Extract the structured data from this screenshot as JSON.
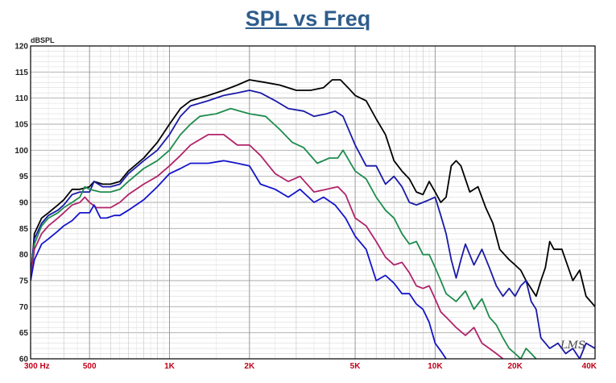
{
  "chart_data": {
    "type": "line",
    "title": "SPL vs Freq",
    "ylabel": "dBSPL",
    "xlabel": "",
    "xscale": "log",
    "xlim": [
      300,
      40000
    ],
    "ylim": [
      60,
      120
    ],
    "yticks": [
      60,
      65,
      70,
      75,
      80,
      85,
      90,
      95,
      100,
      105,
      110,
      115,
      120
    ],
    "xticks": [
      {
        "value": 300,
        "label": "300  Hz"
      },
      {
        "value": 500,
        "label": "500"
      },
      {
        "value": 1000,
        "label": "1K"
      },
      {
        "value": 2000,
        "label": "2K"
      },
      {
        "value": 5000,
        "label": "5K"
      },
      {
        "value": 10000,
        "label": "10K"
      },
      {
        "value": 20000,
        "label": "20K"
      },
      {
        "value": 40000,
        "label": "40K"
      }
    ],
    "grid": true,
    "watermark": "LMS",
    "series": [
      {
        "color": "#000000",
        "points": [
          [
            300,
            75
          ],
          [
            310,
            84
          ],
          [
            330,
            87
          ],
          [
            350,
            88
          ],
          [
            380,
            89.5
          ],
          [
            400,
            90.5
          ],
          [
            430,
            92.5
          ],
          [
            460,
            92.5
          ],
          [
            500,
            93
          ],
          [
            520,
            94
          ],
          [
            560,
            93.5
          ],
          [
            600,
            93.5
          ],
          [
            650,
            94
          ],
          [
            700,
            96
          ],
          [
            800,
            98.5
          ],
          [
            900,
            101.5
          ],
          [
            1000,
            105
          ],
          [
            1100,
            108
          ],
          [
            1200,
            109.5
          ],
          [
            1400,
            110.5
          ],
          [
            1600,
            111.5
          ],
          [
            1800,
            112.5
          ],
          [
            2000,
            113.5
          ],
          [
            2300,
            113
          ],
          [
            2600,
            112.5
          ],
          [
            3000,
            111.5
          ],
          [
            3400,
            111.5
          ],
          [
            3800,
            112
          ],
          [
            4100,
            113.5
          ],
          [
            4400,
            113.5
          ],
          [
            4700,
            112
          ],
          [
            5000,
            110.5
          ],
          [
            5500,
            109.5
          ],
          [
            6000,
            106
          ],
          [
            6500,
            103
          ],
          [
            7000,
            98
          ],
          [
            7500,
            96
          ],
          [
            8000,
            94.5
          ],
          [
            8500,
            92
          ],
          [
            9000,
            91.5
          ],
          [
            9500,
            94
          ],
          [
            10000,
            92
          ],
          [
            10500,
            90
          ],
          [
            11000,
            91
          ],
          [
            11500,
            97
          ],
          [
            12000,
            98
          ],
          [
            12500,
            97
          ],
          [
            13500,
            92
          ],
          [
            14500,
            93
          ],
          [
            15500,
            89
          ],
          [
            16500,
            86
          ],
          [
            17500,
            81
          ],
          [
            19000,
            79
          ],
          [
            20000,
            78
          ],
          [
            21000,
            77
          ],
          [
            22000,
            75
          ],
          [
            24000,
            72
          ],
          [
            25000,
            75
          ],
          [
            26000,
            77.5
          ],
          [
            27000,
            82.5
          ],
          [
            28000,
            81
          ],
          [
            30000,
            81
          ],
          [
            33000,
            75
          ],
          [
            35000,
            77
          ],
          [
            37000,
            72
          ],
          [
            40000,
            70
          ]
        ]
      },
      {
        "color": "#1a1aa8",
        "points": [
          [
            300,
            76
          ],
          [
            310,
            83
          ],
          [
            330,
            86
          ],
          [
            350,
            87.5
          ],
          [
            380,
            88.5
          ],
          [
            400,
            89.5
          ],
          [
            430,
            91.5
          ],
          [
            460,
            92
          ],
          [
            500,
            92
          ],
          [
            520,
            94
          ],
          [
            560,
            93
          ],
          [
            600,
            93
          ],
          [
            650,
            93.5
          ],
          [
            700,
            95.5
          ],
          [
            800,
            98
          ],
          [
            900,
            100
          ],
          [
            1000,
            103
          ],
          [
            1100,
            106.5
          ],
          [
            1200,
            108.5
          ],
          [
            1400,
            109.5
          ],
          [
            1600,
            110.5
          ],
          [
            1800,
            111
          ],
          [
            2000,
            111.5
          ],
          [
            2200,
            111
          ],
          [
            2500,
            109.5
          ],
          [
            2800,
            108
          ],
          [
            3200,
            107.5
          ],
          [
            3500,
            106.5
          ],
          [
            3900,
            107
          ],
          [
            4200,
            107.5
          ],
          [
            4500,
            106.5
          ],
          [
            5000,
            101
          ],
          [
            5500,
            97
          ],
          [
            6000,
            97
          ],
          [
            6500,
            93.5
          ],
          [
            7000,
            95
          ],
          [
            7500,
            93
          ],
          [
            8000,
            90
          ],
          [
            8500,
            89.5
          ],
          [
            9000,
            90
          ],
          [
            9500,
            90.5
          ],
          [
            10000,
            91
          ],
          [
            10500,
            87.5
          ],
          [
            11000,
            84
          ],
          [
            11500,
            79
          ],
          [
            12000,
            75.5
          ],
          [
            12500,
            79
          ],
          [
            13000,
            82
          ],
          [
            14000,
            78
          ],
          [
            15000,
            81
          ],
          [
            16000,
            77.5
          ],
          [
            17000,
            74
          ],
          [
            18000,
            72
          ],
          [
            19000,
            73.5
          ],
          [
            20000,
            72
          ],
          [
            21000,
            74
          ],
          [
            22000,
            75
          ],
          [
            23000,
            71
          ],
          [
            24000,
            69.5
          ],
          [
            25000,
            64
          ],
          [
            27000,
            62
          ],
          [
            29000,
            63
          ],
          [
            31000,
            61
          ],
          [
            33000,
            62
          ],
          [
            35000,
            60
          ],
          [
            37000,
            63
          ],
          [
            40000,
            62
          ]
        ]
      },
      {
        "color": "#1e8c4e",
        "points": [
          [
            300,
            75
          ],
          [
            310,
            82
          ],
          [
            330,
            85.5
          ],
          [
            350,
            87
          ],
          [
            380,
            88
          ],
          [
            400,
            89
          ],
          [
            430,
            90
          ],
          [
            460,
            91
          ],
          [
            480,
            93
          ],
          [
            500,
            92.5
          ],
          [
            550,
            92
          ],
          [
            600,
            92
          ],
          [
            650,
            92.5
          ],
          [
            700,
            94
          ],
          [
            800,
            96.5
          ],
          [
            900,
            98
          ],
          [
            1000,
            100
          ],
          [
            1100,
            103
          ],
          [
            1200,
            105
          ],
          [
            1300,
            106.5
          ],
          [
            1500,
            107
          ],
          [
            1700,
            108
          ],
          [
            2000,
            107
          ],
          [
            2300,
            106.5
          ],
          [
            2600,
            104
          ],
          [
            2900,
            101.5
          ],
          [
            3200,
            100.5
          ],
          [
            3600,
            97.5
          ],
          [
            4000,
            98.5
          ],
          [
            4300,
            98.5
          ],
          [
            4500,
            100
          ],
          [
            5000,
            96
          ],
          [
            5500,
            94.5
          ],
          [
            6000,
            91
          ],
          [
            6500,
            88.5
          ],
          [
            7000,
            87
          ],
          [
            7500,
            84
          ],
          [
            8000,
            82
          ],
          [
            8500,
            82.5
          ],
          [
            9000,
            80
          ],
          [
            9500,
            80
          ],
          [
            10000,
            77.5
          ],
          [
            10500,
            75
          ],
          [
            11000,
            72.5
          ],
          [
            12000,
            71
          ],
          [
            13000,
            73
          ],
          [
            14000,
            69.5
          ],
          [
            15000,
            71.5
          ],
          [
            16000,
            68
          ],
          [
            17000,
            66.5
          ],
          [
            18000,
            64
          ],
          [
            19000,
            62
          ],
          [
            20000,
            61
          ],
          [
            21000,
            60
          ],
          [
            22000,
            62
          ],
          [
            23000,
            61
          ],
          [
            24000,
            60
          ]
        ]
      },
      {
        "color": "#b0246a",
        "points": [
          [
            300,
            75
          ],
          [
            310,
            81
          ],
          [
            330,
            84
          ],
          [
            350,
            85.5
          ],
          [
            380,
            87
          ],
          [
            400,
            88
          ],
          [
            430,
            89.5
          ],
          [
            460,
            90
          ],
          [
            480,
            91
          ],
          [
            500,
            90
          ],
          [
            530,
            89
          ],
          [
            560,
            89
          ],
          [
            600,
            89
          ],
          [
            650,
            90
          ],
          [
            700,
            91.5
          ],
          [
            800,
            93.5
          ],
          [
            900,
            95
          ],
          [
            1000,
            97
          ],
          [
            1100,
            99
          ],
          [
            1200,
            101
          ],
          [
            1400,
            103
          ],
          [
            1600,
            103
          ],
          [
            1800,
            101
          ],
          [
            2000,
            101
          ],
          [
            2200,
            99
          ],
          [
            2500,
            95.5
          ],
          [
            2800,
            94
          ],
          [
            3100,
            95
          ],
          [
            3500,
            92
          ],
          [
            3900,
            92.5
          ],
          [
            4300,
            93
          ],
          [
            4600,
            91.5
          ],
          [
            5000,
            87
          ],
          [
            5500,
            85.5
          ],
          [
            6000,
            82.5
          ],
          [
            6500,
            79.5
          ],
          [
            7000,
            78
          ],
          [
            7500,
            78.5
          ],
          [
            8000,
            76.5
          ],
          [
            8500,
            74
          ],
          [
            9000,
            73.5
          ],
          [
            9500,
            74
          ],
          [
            10000,
            71.5
          ],
          [
            10500,
            69
          ],
          [
            11000,
            68
          ],
          [
            12000,
            66
          ],
          [
            13000,
            64.5
          ],
          [
            14000,
            66
          ],
          [
            15000,
            63
          ],
          [
            16000,
            62
          ],
          [
            17000,
            61
          ],
          [
            18000,
            60
          ]
        ]
      },
      {
        "color": "#1414cc",
        "points": [
          [
            300,
            75
          ],
          [
            310,
            79
          ],
          [
            330,
            82
          ],
          [
            350,
            83
          ],
          [
            380,
            84.5
          ],
          [
            400,
            85.5
          ],
          [
            430,
            86.5
          ],
          [
            460,
            88
          ],
          [
            500,
            88
          ],
          [
            520,
            89.5
          ],
          [
            550,
            87
          ],
          [
            580,
            87
          ],
          [
            620,
            87.5
          ],
          [
            650,
            87.5
          ],
          [
            700,
            88.5
          ],
          [
            800,
            90.5
          ],
          [
            900,
            93
          ],
          [
            1000,
            95.5
          ],
          [
            1100,
            96.5
          ],
          [
            1200,
            97.5
          ],
          [
            1400,
            97.5
          ],
          [
            1600,
            98
          ],
          [
            1800,
            97.5
          ],
          [
            2000,
            97
          ],
          [
            2200,
            93.5
          ],
          [
            2500,
            92.5
          ],
          [
            2800,
            91
          ],
          [
            3100,
            92.5
          ],
          [
            3500,
            90
          ],
          [
            3800,
            91
          ],
          [
            4200,
            89.5
          ],
          [
            4600,
            87
          ],
          [
            5000,
            83.5
          ],
          [
            5500,
            81
          ],
          [
            6000,
            75
          ],
          [
            6500,
            76
          ],
          [
            7000,
            74.5
          ],
          [
            7500,
            72.5
          ],
          [
            8000,
            72.5
          ],
          [
            8500,
            70.5
          ],
          [
            9000,
            69.5
          ],
          [
            9500,
            67
          ],
          [
            10000,
            63
          ],
          [
            10500,
            61.5
          ],
          [
            11000,
            60
          ]
        ]
      }
    ]
  }
}
